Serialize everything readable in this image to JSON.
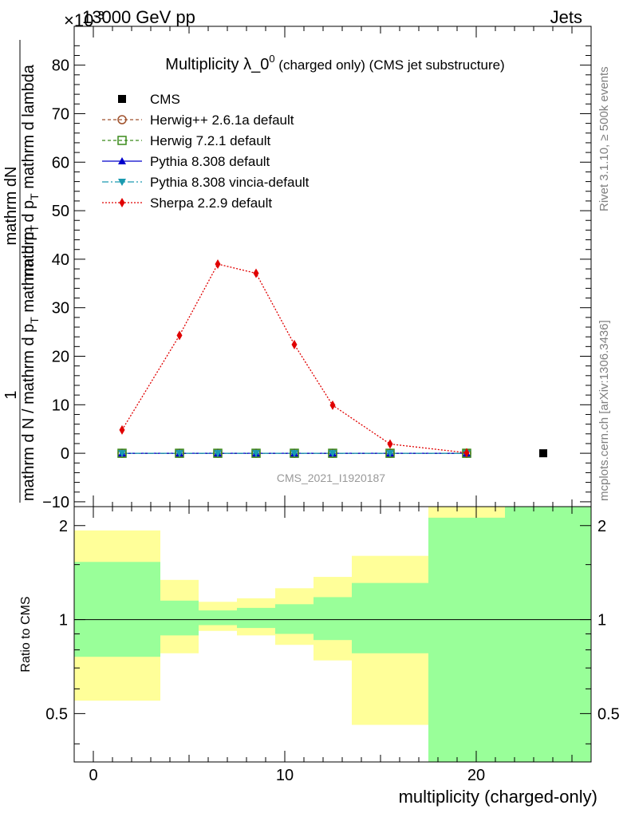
{
  "header": {
    "left": "13000 GeV pp",
    "right": "Jets",
    "exponent": "×10",
    "exponent_power": "-3"
  },
  "side_labels": {
    "rivet": "Rivet 3.1.10, ≥ 500k events",
    "mcplots": "mcplots.cern.ch [arXiv:1306.3436]"
  },
  "watermark": "CMS_2021_I1920187",
  "chart_data": [
    {
      "type": "line",
      "title_main": "Multiplicity λ_0",
      "title_sup": "0",
      "title_tail": " (charged only) (CMS jet substructure)",
      "ylabel_num": "mathrm dN",
      "ylabel_den1": "mathrm d p",
      "ylabel_den1_sub": "T",
      "ylabel_den2": " mathrm d lambda",
      "ylabel_one": "1",
      "ylabel_lower": "mathrm d N / mathrm d p",
      "ylabel_lower_sub": "T",
      "ylabel_lower_tail": " mathrm d p",
      "ylabel_lower_sub2": "T",
      "xlim": [
        -1,
        26
      ],
      "ylim": [
        -11,
        88
      ],
      "yticks": [
        -10,
        0,
        10,
        20,
        30,
        40,
        50,
        60,
        70,
        80
      ],
      "ytick_labels": [
        "−10",
        "0",
        "10",
        "20",
        "30",
        "40",
        "50",
        "60",
        "70",
        "80"
      ],
      "legend": [
        {
          "name": "CMS",
          "color": "#000000",
          "marker": "square",
          "dash": ""
        },
        {
          "name": "Herwig++ 2.6.1a default",
          "color": "#a0522d",
          "marker": "circle-open",
          "dash": "4,3"
        },
        {
          "name": "Herwig 7.2.1 default",
          "color": "#3a8a1a",
          "marker": "square-open",
          "dash": "4,3"
        },
        {
          "name": "Pythia 8.308 default",
          "color": "#0000cc",
          "marker": "triangle-up",
          "dash": ""
        },
        {
          "name": "Pythia 8.308 vincia-default",
          "color": "#1a9ab0",
          "marker": "triangle-down",
          "dash": "8,3,2,3"
        },
        {
          "name": "Sherpa 2.2.9 default",
          "color": "#e00000",
          "marker": "diamond",
          "dash": "2,2"
        }
      ],
      "cms": {
        "x": [
          23.5
        ],
        "y": [
          0
        ]
      },
      "mc_x": [
        1.5,
        4.5,
        6.5,
        8.5,
        10.5,
        12.5,
        15.5,
        19.5
      ],
      "flat_y": [
        0,
        0,
        0,
        0,
        0,
        0,
        0,
        0
      ],
      "sherpa_y": [
        4.8,
        24.3,
        39.0,
        37.1,
        22.4,
        9.9,
        1.9,
        0.1
      ]
    },
    {
      "type": "bar",
      "ylabel": "Ratio to CMS",
      "xlabel": "multiplicity (charged-only)",
      "xticks": [
        0,
        10,
        20
      ],
      "xtick_labels": [
        "0",
        "10",
        "20"
      ],
      "yticks": [
        0.5,
        1,
        2
      ],
      "ytick_labels": [
        "0.5",
        "1",
        "2"
      ],
      "ylim": [
        0.35,
        2.3
      ],
      "bins": [
        {
          "x0": -1,
          "x1": 3.5,
          "green_lo": 0.76,
          "green_hi": 1.53,
          "yellow_lo": 0.55,
          "yellow_hi": 1.93
        },
        {
          "x0": 3.5,
          "x1": 5.5,
          "green_lo": 0.89,
          "green_hi": 1.15,
          "yellow_lo": 0.78,
          "yellow_hi": 1.34
        },
        {
          "x0": 5.5,
          "x1": 7.5,
          "green_lo": 0.96,
          "green_hi": 1.07,
          "yellow_lo": 0.92,
          "yellow_hi": 1.14
        },
        {
          "x0": 7.5,
          "x1": 9.5,
          "green_lo": 0.94,
          "green_hi": 1.09,
          "yellow_lo": 0.89,
          "yellow_hi": 1.17
        },
        {
          "x0": 9.5,
          "x1": 11.5,
          "green_lo": 0.9,
          "green_hi": 1.12,
          "yellow_lo": 0.83,
          "yellow_hi": 1.26
        },
        {
          "x0": 11.5,
          "x1": 13.5,
          "green_lo": 0.86,
          "green_hi": 1.18,
          "yellow_lo": 0.74,
          "yellow_hi": 1.37
        },
        {
          "x0": 13.5,
          "x1": 17.5,
          "green_lo": 0.78,
          "green_hi": 1.31,
          "yellow_lo": 0.46,
          "yellow_hi": 1.6
        },
        {
          "x0": 17.5,
          "x1": 21.5,
          "green_lo": 0.35,
          "green_hi": 2.12,
          "yellow_lo": 0.35,
          "yellow_hi": 2.3
        },
        {
          "x0": 21.5,
          "x1": 26,
          "green_lo": 0.35,
          "green_hi": 2.3,
          "yellow_lo": 0.35,
          "yellow_hi": 2.3
        }
      ]
    }
  ]
}
